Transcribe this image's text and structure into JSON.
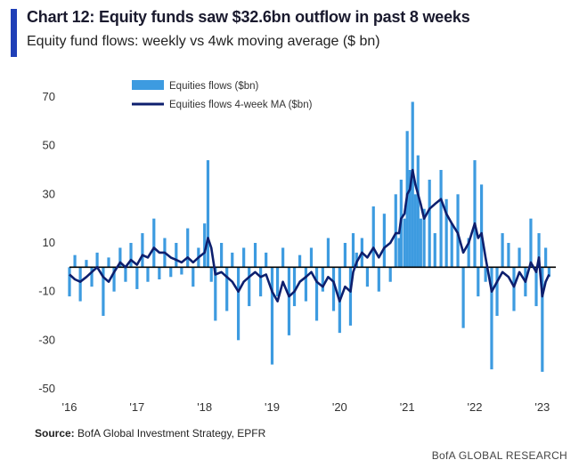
{
  "header": {
    "title": "Chart 12: Equity funds saw $32.6bn outflow in past 8 weeks",
    "subtitle": "Equity fund flows: weekly vs 4wk moving average ($ bn)"
  },
  "footer": {
    "source_label": "Source:",
    "source_text": "BofA Global Investment Strategy, EPFR",
    "brand": "BofA GLOBAL RESEARCH"
  },
  "colors": {
    "accent": "#1f3fb7",
    "bars": "#3d9be0",
    "ma_line": "#0d1f6e",
    "zero_line": "#000000"
  },
  "chart_data": {
    "type": "bar+line",
    "title": "Equity fund flows: weekly vs 4wk moving average ($ bn)",
    "xlabel": "",
    "ylabel": "$ bn",
    "ylim": [
      -50,
      75
    ],
    "y_ticks": [
      70,
      50,
      30,
      10,
      -10,
      -30,
      -50
    ],
    "x_tick_labels": [
      "'16",
      "'17",
      "'18",
      "'19",
      "'20",
      "'21",
      "'22",
      "'23"
    ],
    "x_tick_positions": [
      2016,
      2017,
      2018,
      2019,
      2020,
      2021,
      2022,
      2023
    ],
    "xlim": [
      2016.0,
      2023.2
    ],
    "legend": {
      "position": "top-center",
      "entries": [
        "Equities flows ($bn)",
        "Equities flows 4-week MA ($bn)"
      ]
    },
    "series": [
      {
        "name": "Equities flows ($bn)",
        "kind": "bar",
        "x": [
          2016.0,
          2016.08,
          2016.16,
          2016.25,
          2016.33,
          2016.41,
          2016.5,
          2016.58,
          2016.66,
          2016.75,
          2016.83,
          2016.91,
          2017.0,
          2017.08,
          2017.16,
          2017.25,
          2017.33,
          2017.41,
          2017.5,
          2017.58,
          2017.66,
          2017.75,
          2017.83,
          2017.91,
          2018.0,
          2018.05,
          2018.1,
          2018.16,
          2018.25,
          2018.33,
          2018.41,
          2018.5,
          2018.58,
          2018.66,
          2018.75,
          2018.83,
          2018.91,
          2019.0,
          2019.08,
          2019.16,
          2019.25,
          2019.33,
          2019.41,
          2019.5,
          2019.58,
          2019.66,
          2019.75,
          2019.83,
          2019.91,
          2020.0,
          2020.08,
          2020.16,
          2020.2,
          2020.25,
          2020.33,
          2020.41,
          2020.5,
          2020.58,
          2020.66,
          2020.75,
          2020.83,
          2020.88,
          2020.91,
          2020.96,
          2021.0,
          2021.04,
          2021.08,
          2021.12,
          2021.16,
          2021.2,
          2021.25,
          2021.33,
          2021.41,
          2021.5,
          2021.58,
          2021.66,
          2021.75,
          2021.83,
          2021.91,
          2022.0,
          2022.05,
          2022.1,
          2022.16,
          2022.25,
          2022.33,
          2022.41,
          2022.5,
          2022.58,
          2022.66,
          2022.75,
          2022.83,
          2022.91,
          2022.95,
          2023.0,
          2023.05,
          2023.1
        ],
        "values": [
          -12,
          5,
          -14,
          3,
          -8,
          6,
          -20,
          4,
          -10,
          8,
          -6,
          10,
          -9,
          14,
          -6,
          20,
          -5,
          12,
          -4,
          10,
          -3,
          16,
          -8,
          8,
          18,
          44,
          -6,
          -22,
          10,
          -18,
          6,
          -30,
          8,
          -16,
          10,
          -12,
          6,
          -40,
          -12,
          8,
          -28,
          -16,
          5,
          -14,
          8,
          -22,
          -10,
          12,
          -18,
          -27,
          10,
          -24,
          14,
          6,
          12,
          -8,
          25,
          -10,
          22,
          -6,
          30,
          12,
          36,
          20,
          56,
          40,
          68,
          30,
          46,
          20,
          24,
          36,
          14,
          40,
          28,
          18,
          30,
          -25,
          12,
          44,
          -12,
          34,
          -6,
          -42,
          -20,
          14,
          10,
          -18,
          8,
          -12,
          20,
          -16,
          14,
          -43,
          8,
          -4
        ],
        "color": "#3d9be0"
      },
      {
        "name": "Equities flows 4-week MA ($bn)",
        "kind": "line",
        "x": [
          2016.0,
          2016.08,
          2016.16,
          2016.25,
          2016.33,
          2016.41,
          2016.5,
          2016.58,
          2016.66,
          2016.75,
          2016.83,
          2016.91,
          2017.0,
          2017.08,
          2017.16,
          2017.25,
          2017.33,
          2017.41,
          2017.5,
          2017.58,
          2017.66,
          2017.75,
          2017.83,
          2017.91,
          2018.0,
          2018.05,
          2018.1,
          2018.16,
          2018.25,
          2018.33,
          2018.41,
          2018.5,
          2018.58,
          2018.66,
          2018.75,
          2018.83,
          2018.91,
          2019.0,
          2019.08,
          2019.16,
          2019.25,
          2019.33,
          2019.41,
          2019.5,
          2019.58,
          2019.66,
          2019.75,
          2019.83,
          2019.91,
          2020.0,
          2020.08,
          2020.16,
          2020.2,
          2020.25,
          2020.33,
          2020.41,
          2020.5,
          2020.58,
          2020.66,
          2020.75,
          2020.83,
          2020.88,
          2020.91,
          2020.96,
          2021.0,
          2021.04,
          2021.08,
          2021.12,
          2021.16,
          2021.2,
          2021.25,
          2021.33,
          2021.41,
          2021.5,
          2021.58,
          2021.66,
          2021.75,
          2021.83,
          2021.91,
          2022.0,
          2022.05,
          2022.1,
          2022.16,
          2022.25,
          2022.33,
          2022.41,
          2022.5,
          2022.58,
          2022.66,
          2022.75,
          2022.83,
          2022.91,
          2022.95,
          2023.0,
          2023.05,
          2023.1
        ],
        "values": [
          -3,
          -5,
          -6,
          -4,
          -2,
          0,
          -4,
          -6,
          -2,
          2,
          0,
          3,
          1,
          5,
          4,
          8,
          6,
          6,
          4,
          3,
          2,
          4,
          2,
          4,
          6,
          12,
          8,
          -3,
          -2,
          -4,
          -6,
          -10,
          -6,
          -4,
          -2,
          -4,
          -3,
          -10,
          -14,
          -6,
          -12,
          -10,
          -6,
          -4,
          -2,
          -6,
          -8,
          -4,
          -6,
          -14,
          -8,
          -10,
          -2,
          2,
          6,
          4,
          8,
          4,
          8,
          10,
          14,
          14,
          20,
          22,
          30,
          32,
          40,
          34,
          30,
          26,
          20,
          24,
          26,
          28,
          22,
          18,
          14,
          6,
          10,
          18,
          12,
          14,
          4,
          -10,
          -6,
          -2,
          -4,
          -8,
          -2,
          -6,
          2,
          -2,
          4,
          -12,
          -6,
          -3
        ],
        "color": "#0d1f6e"
      }
    ]
  }
}
